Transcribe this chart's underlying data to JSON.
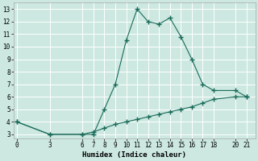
{
  "xlabel": "Humidex (Indice chaleur)",
  "background_color": "#cce8e0",
  "grid_color": "#ffffff",
  "grid_minor_color": "#ddeee8",
  "line_color": "#1a6b5a",
  "x_upper": [
    0,
    3,
    6,
    7,
    8,
    9,
    10,
    11,
    12,
    13,
    14,
    15,
    16,
    17,
    18,
    20,
    21
  ],
  "y_upper": [
    4,
    3,
    3,
    3,
    5,
    7,
    10.5,
    13,
    12,
    11.8,
    12.3,
    10.8,
    9,
    7,
    6.5,
    6.5,
    6
  ],
  "x_lower": [
    0,
    3,
    6,
    7,
    8,
    9,
    10,
    11,
    12,
    13,
    14,
    15,
    16,
    17,
    18,
    20,
    21
  ],
  "y_lower": [
    4,
    3,
    3,
    3.2,
    3.5,
    3.8,
    4.0,
    4.2,
    4.4,
    4.6,
    4.8,
    5.0,
    5.2,
    5.5,
    5.8,
    6.0,
    6.0
  ],
  "xticks": [
    0,
    3,
    6,
    7,
    8,
    9,
    10,
    11,
    12,
    13,
    14,
    15,
    16,
    17,
    18,
    20,
    21
  ],
  "yticks": [
    3,
    4,
    5,
    6,
    7,
    8,
    9,
    10,
    11,
    12,
    13
  ],
  "xlim": [
    -0.3,
    21.8
  ],
  "ylim": [
    2.7,
    13.5
  ]
}
